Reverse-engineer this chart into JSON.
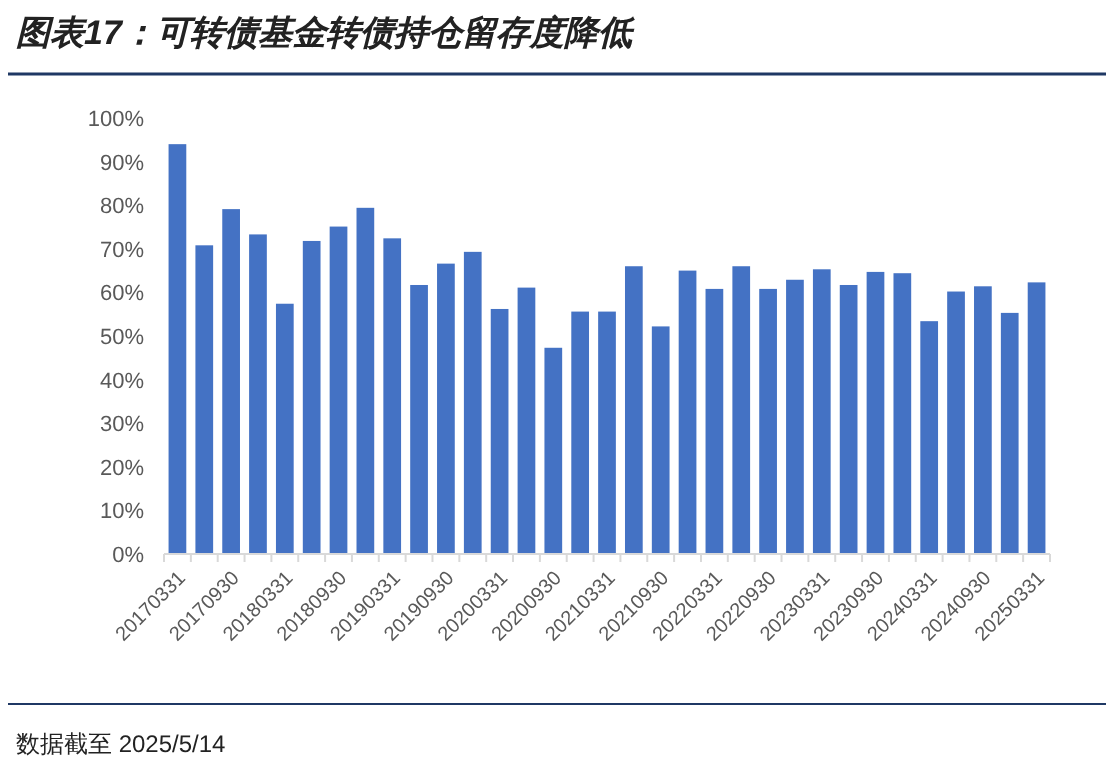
{
  "chart_data": {
    "type": "bar",
    "title": "图表17：可转债基金转债持仓留存度降低",
    "categories": [
      "20170331",
      null,
      "20170930",
      null,
      "20180331",
      null,
      "20180930",
      null,
      "20190331",
      null,
      "20190930",
      null,
      "20200331",
      null,
      "20200930",
      null,
      "20210331",
      null,
      "20210930",
      null,
      "20220331",
      null,
      "20220930",
      null,
      "20230331",
      null,
      "20230930",
      null,
      "20240331",
      null,
      "20240930",
      null,
      "20250331"
    ],
    "values": [
      94,
      70.8,
      79.1,
      73.3,
      57.4,
      71.8,
      75.1,
      79.4,
      72.4,
      61.7,
      66.6,
      69.3,
      56.2,
      61.1,
      47.3,
      55.6,
      55.6,
      66,
      52.2,
      65,
      60.8,
      66,
      60.8,
      62.9,
      65.3,
      61.7,
      64.7,
      64.4,
      53.4,
      60.2,
      61.4,
      55.3,
      62.3
    ],
    "color": "#4472c4",
    "ylim": [
      0,
      100
    ],
    "yticks": [
      {
        "value": 0,
        "label": "0%"
      },
      {
        "value": 10,
        "label": "10%"
      },
      {
        "value": 20,
        "label": "20%"
      },
      {
        "value": 30,
        "label": "30%"
      },
      {
        "value": 40,
        "label": "40%"
      },
      {
        "value": 50,
        "label": "50%"
      },
      {
        "value": 60,
        "label": "60%"
      },
      {
        "value": 70,
        "label": "70%"
      },
      {
        "value": 80,
        "label": "80%"
      },
      {
        "value": 90,
        "label": "90%"
      },
      {
        "value": 100,
        "label": "100%"
      }
    ],
    "grid": false,
    "annotations": [
      "数据截至 2025/5/14"
    ]
  }
}
